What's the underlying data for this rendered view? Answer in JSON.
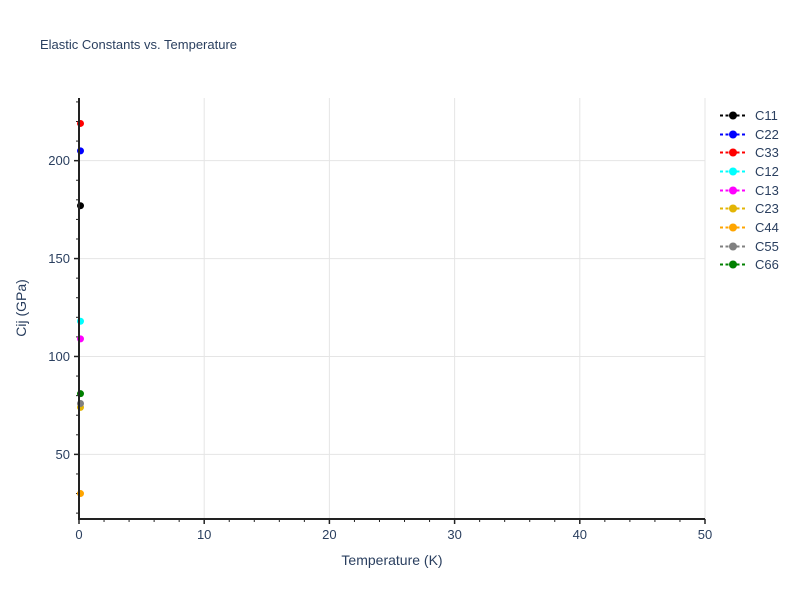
{
  "chart_data": {
    "type": "scatter",
    "title": "Elastic Constants vs. Temperature",
    "xlabel": "Temperature (K)",
    "ylabel": "Cij (GPa)",
    "x_range": [
      0,
      50
    ],
    "y_range": [
      17,
      232
    ],
    "x_ticks": [
      0,
      10,
      20,
      30,
      40,
      50
    ],
    "x_minor_step": 2,
    "y_ticks": [
      50,
      100,
      150,
      200
    ],
    "y_minor_step": 10,
    "grid": true,
    "legend_position": "right",
    "marker_style": "dashed-line-with-dot",
    "style": {
      "text_color": "#2a3f5f",
      "grid_color": "#e5e5e5",
      "axis_color": "#222222",
      "background": "#ffffff"
    },
    "series": [
      {
        "name": "C11",
        "color": "#000000",
        "x": [
          0
        ],
        "y": [
          177
        ]
      },
      {
        "name": "C22",
        "color": "#0000ff",
        "x": [
          0
        ],
        "y": [
          205
        ]
      },
      {
        "name": "C33",
        "color": "#ff0000",
        "x": [
          0
        ],
        "y": [
          219
        ]
      },
      {
        "name": "C12",
        "color": "#00ffff",
        "x": [
          0
        ],
        "y": [
          118
        ]
      },
      {
        "name": "C13",
        "color": "#ff00ff",
        "x": [
          0
        ],
        "y": [
          109
        ]
      },
      {
        "name": "C23",
        "color": "#e3b505",
        "x": [
          0
        ],
        "y": [
          74
        ]
      },
      {
        "name": "C44",
        "color": "#ffa500",
        "x": [
          0
        ],
        "y": [
          30
        ]
      },
      {
        "name": "C55",
        "color": "#808080",
        "x": [
          0
        ],
        "y": [
          76
        ]
      },
      {
        "name": "C66",
        "color": "#008000",
        "x": [
          0
        ],
        "y": [
          81
        ]
      }
    ]
  }
}
